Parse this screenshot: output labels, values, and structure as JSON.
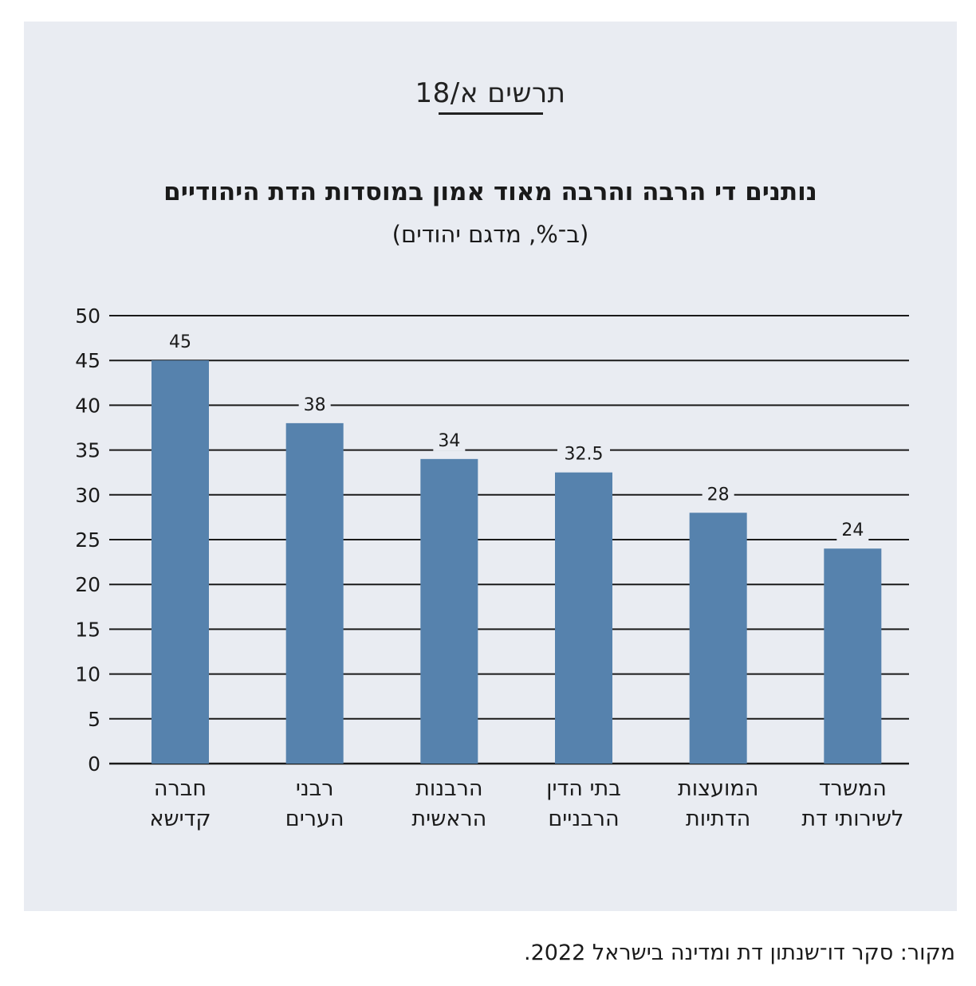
{
  "figure_label": "תרשים א/18",
  "source": "מקור: סקר דו־שנתון דת ומדינה בישראל 2022.",
  "colors": {
    "background": "#e9ecf2",
    "bar": "#5682ad",
    "gridline": "#1a1a1a"
  },
  "chart_data": {
    "type": "bar",
    "title": "נותנים די הרבה והרבה מאוד אמון במוסדות הדת היהודיים",
    "subtitle": "(ב־%, מדגם יהודים)",
    "categories": [
      [
        "חברה",
        "קדישא"
      ],
      [
        "רבני",
        "הערים"
      ],
      [
        "הרבנות",
        "הראשית"
      ],
      [
        "בתי הדין",
        "הרבניים"
      ],
      [
        "המועצות",
        "הדתיות"
      ],
      [
        "המשרד",
        "לשירותי דת"
      ]
    ],
    "values": [
      45,
      38,
      34,
      32.5,
      28,
      24
    ],
    "value_labels": [
      "45",
      "38",
      "34",
      "32.5",
      "28",
      "24"
    ],
    "ylim": [
      0,
      50
    ],
    "yticks": [
      0,
      5,
      10,
      15,
      20,
      25,
      30,
      35,
      40,
      45,
      50
    ],
    "grid": true,
    "xlabel": "",
    "ylabel": ""
  }
}
